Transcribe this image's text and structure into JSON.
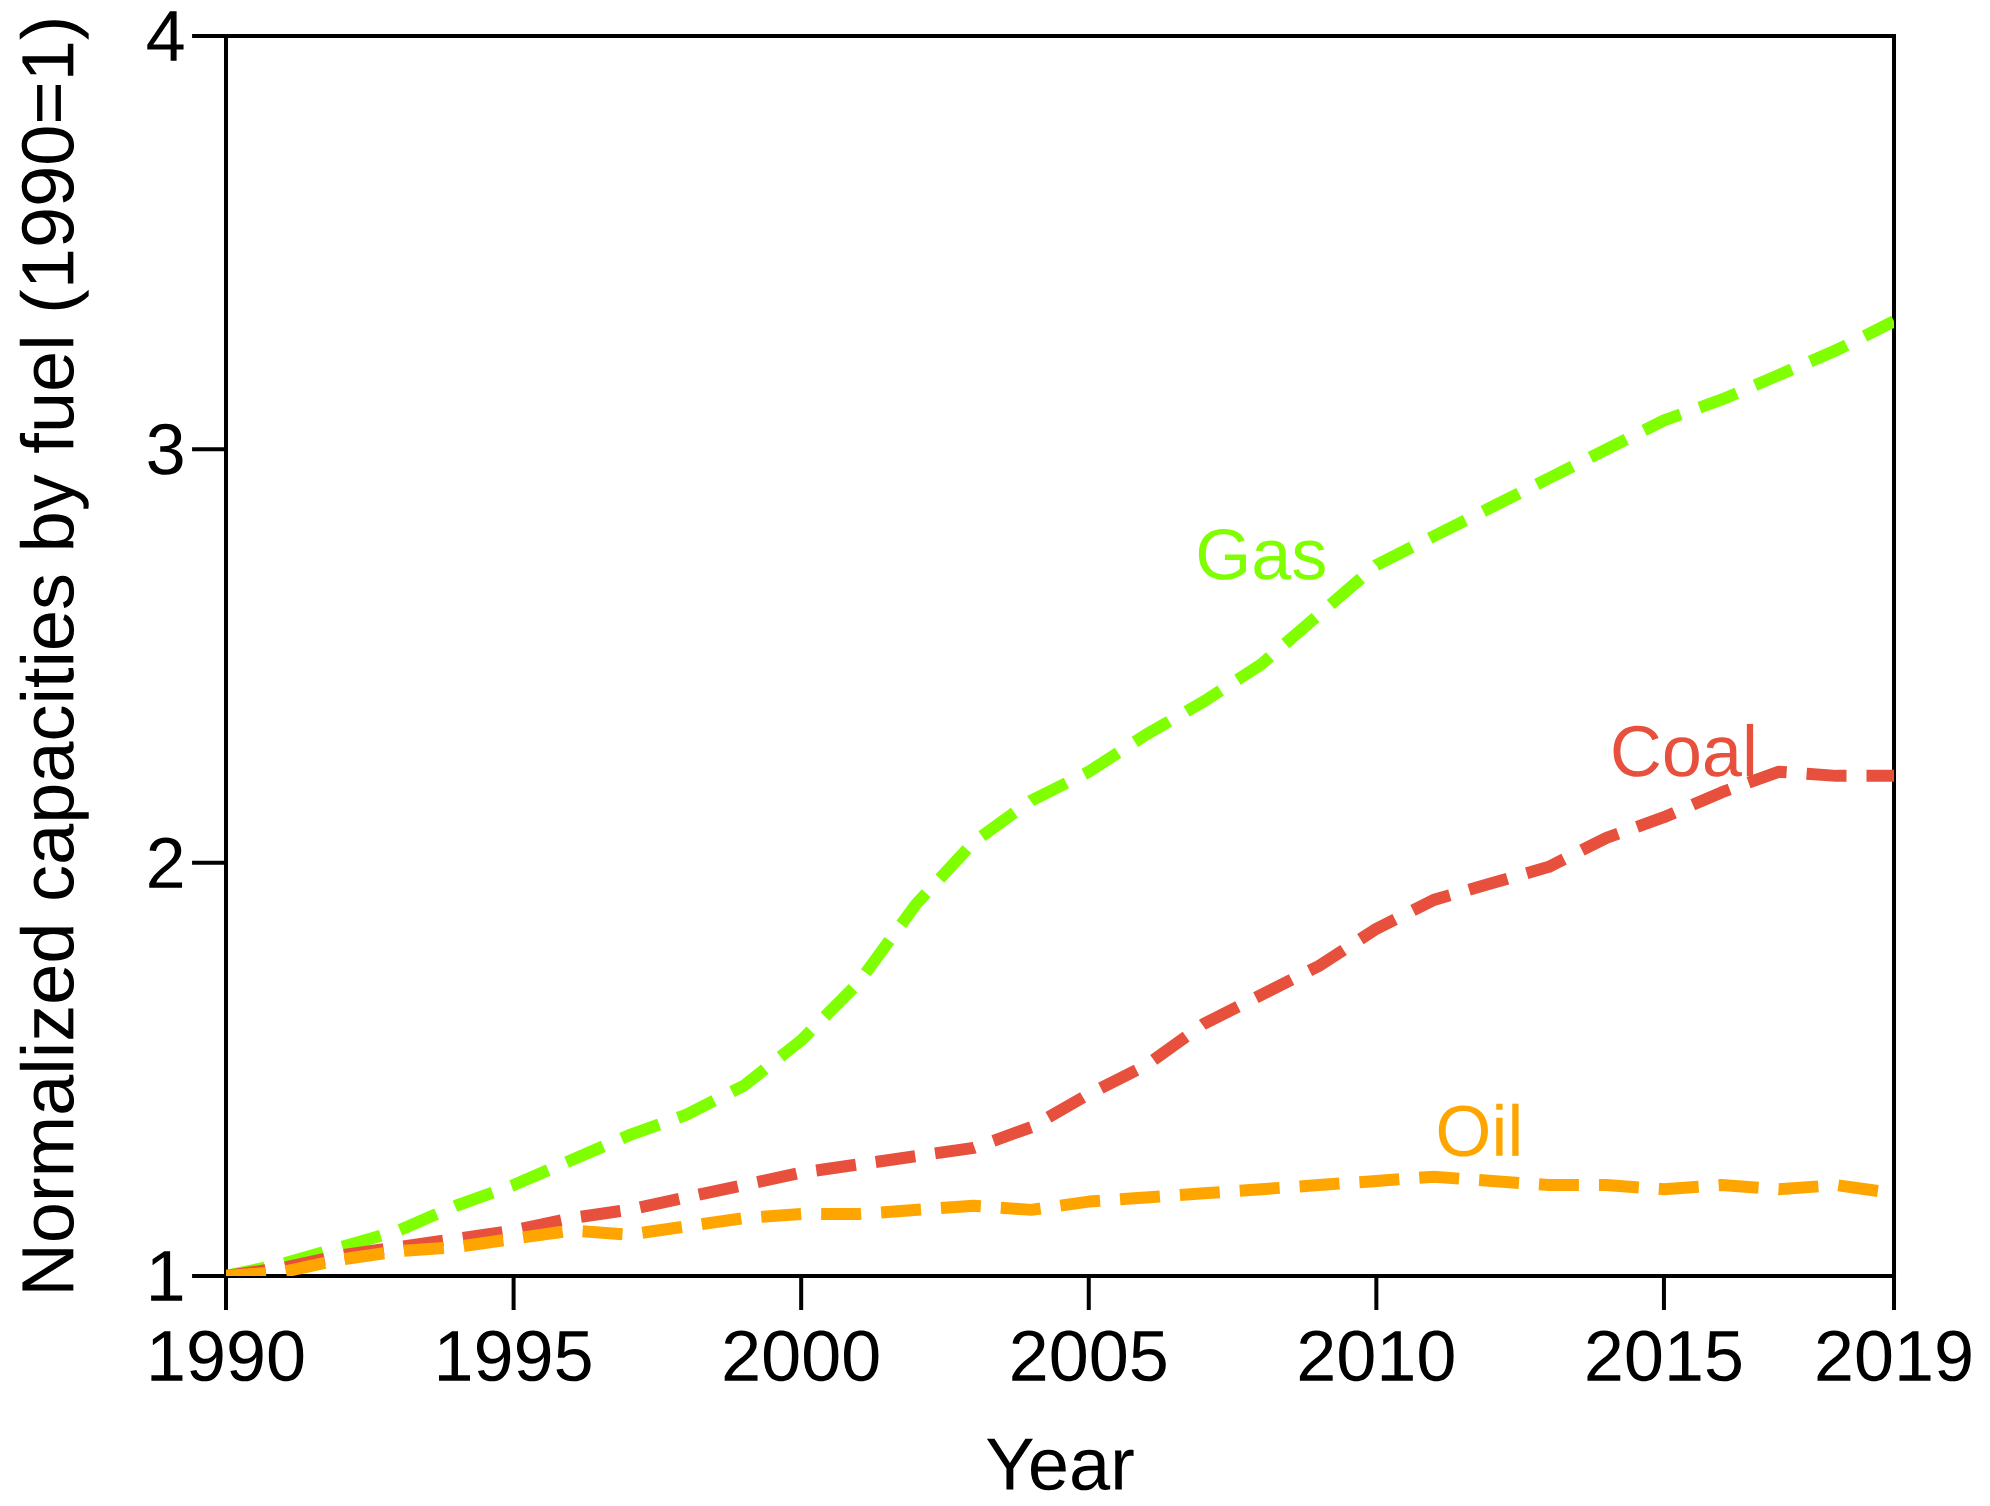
{
  "chart_data": {
    "type": "line",
    "xlabel": "Year",
    "ylabel": "Normalized capacities by fuel (1990=1)",
    "x": [
      1990,
      1991,
      1992,
      1993,
      1994,
      1995,
      1996,
      1997,
      1998,
      1999,
      2000,
      2001,
      2002,
      2003,
      2004,
      2005,
      2006,
      2007,
      2008,
      2009,
      2010,
      2011,
      2012,
      2013,
      2014,
      2015,
      2016,
      2017,
      2018,
      2019
    ],
    "series": [
      {
        "name": "Gas",
        "color": "#7fff00",
        "values": [
          1.0,
          1.03,
          1.07,
          1.11,
          1.17,
          1.22,
          1.28,
          1.34,
          1.39,
          1.46,
          1.57,
          1.71,
          1.9,
          2.05,
          2.15,
          2.22,
          2.31,
          2.39,
          2.48,
          2.6,
          2.72,
          2.79,
          2.86,
          2.93,
          3.0,
          3.07,
          3.12,
          3.18,
          3.24,
          3.31
        ]
      },
      {
        "name": "Coal",
        "color": "#e6503c",
        "values": [
          1.0,
          1.02,
          1.05,
          1.07,
          1.09,
          1.11,
          1.14,
          1.16,
          1.19,
          1.22,
          1.25,
          1.27,
          1.29,
          1.31,
          1.36,
          1.44,
          1.51,
          1.61,
          1.68,
          1.75,
          1.84,
          1.91,
          1.95,
          1.99,
          2.06,
          2.11,
          2.17,
          2.22,
          2.21,
          2.21
        ]
      },
      {
        "name": "Oil",
        "color": "#ffa500",
        "values": [
          1.0,
          1.01,
          1.04,
          1.06,
          1.07,
          1.09,
          1.11,
          1.1,
          1.12,
          1.14,
          1.15,
          1.15,
          1.16,
          1.17,
          1.16,
          1.18,
          1.19,
          1.2,
          1.21,
          1.22,
          1.23,
          1.24,
          1.23,
          1.22,
          1.22,
          1.21,
          1.22,
          1.21,
          1.22,
          1.2
        ]
      }
    ],
    "xlim": [
      1990,
      2019
    ],
    "ylim": [
      1,
      4
    ],
    "xticks": [
      1990,
      1995,
      2000,
      2005,
      2010,
      2015,
      2019
    ],
    "yticks": [
      1,
      2,
      3,
      4
    ],
    "line_style": "dashed"
  }
}
